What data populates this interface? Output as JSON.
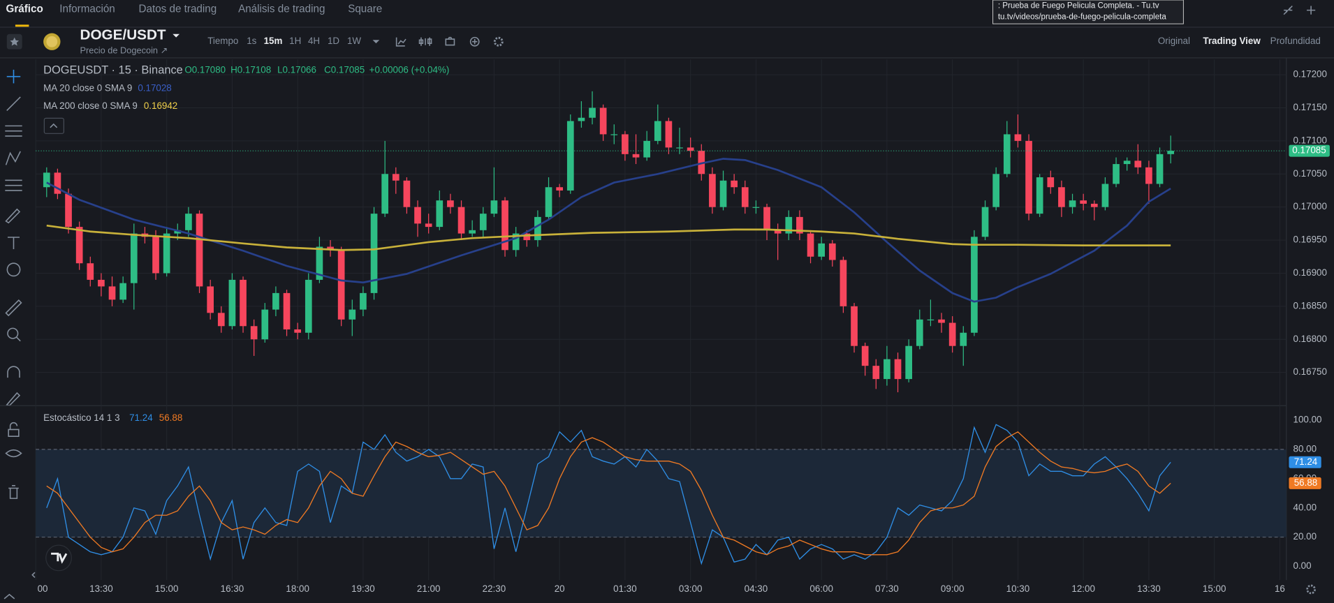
{
  "tabs": [
    "Gráfico",
    "Información",
    "Datos de trading",
    "Análisis de trading",
    "Square"
  ],
  "tooltip": [
    ": Prueba de Fuego Pelicula Completa. - Tu.tv",
    "tu.tv/videos/prueba-de-fuego-pelicula-completa"
  ],
  "header": {
    "symbol": "DOGE/USDT",
    "subtitle": "Precio de Dogecoin ↗",
    "time_label": "Tiempo",
    "timeframes": [
      "1s",
      "15m",
      "1H",
      "4H",
      "1D",
      "1W"
    ],
    "view_modes": [
      "Original",
      "Trading View",
      "Profundidad"
    ]
  },
  "chart_data": [
    {
      "type": "candlestick",
      "title": "DOGEUSDT · 15 · Binance",
      "ohlc_labels": [
        "O0.17080",
        "H0.17108",
        "L0.17066",
        "C0.17085",
        "+0.00006 (+0.04%)"
      ],
      "up_color": "#2ebd85",
      "down_color": "#f6465d",
      "grid": true,
      "xlim": [
        -1,
        113.6
      ],
      "ylim": [
        0.16701,
        0.17223
      ],
      "xticks": [
        {
          "value": -1,
          "label": "00"
        },
        {
          "value": 5,
          "label": "13:30"
        },
        {
          "value": 11,
          "label": "15:00"
        },
        {
          "value": 17,
          "label": "16:30"
        },
        {
          "value": 23,
          "label": "18:00"
        },
        {
          "value": 29,
          "label": "19:30"
        },
        {
          "value": 35,
          "label": "21:00"
        },
        {
          "value": 41,
          "label": "22:30"
        },
        {
          "value": 47,
          "label": "20"
        },
        {
          "value": 53,
          "label": "01:30"
        },
        {
          "value": 59,
          "label": "03:00"
        },
        {
          "value": 65,
          "label": "04:30"
        },
        {
          "value": 71,
          "label": "06:00"
        },
        {
          "value": 77,
          "label": "07:30"
        },
        {
          "value": 83,
          "label": "09:00"
        },
        {
          "value": 89,
          "label": "10:30"
        },
        {
          "value": 95,
          "label": "12:00"
        },
        {
          "value": 101,
          "label": "13:30"
        },
        {
          "value": 107,
          "label": "15:00"
        },
        {
          "value": 113,
          "label": "16"
        }
      ],
      "yticks": [
        {
          "value": 0.172,
          "label": "0.17200"
        },
        {
          "value": 0.1715,
          "label": "0.17150"
        },
        {
          "value": 0.171,
          "label": "0.17100"
        },
        {
          "value": 0.1705,
          "label": "0.17050"
        },
        {
          "value": 0.17,
          "label": "0.17000"
        },
        {
          "value": 0.1695,
          "label": "0.16950"
        },
        {
          "value": 0.169,
          "label": "0.16900"
        },
        {
          "value": 0.1685,
          "label": "0.16850"
        },
        {
          "value": 0.168,
          "label": "0.16800"
        },
        {
          "value": 0.1675,
          "label": "0.16750"
        }
      ],
      "candles": [
        [
          0.1703,
          0.1706,
          0.17015,
          0.17052
        ],
        [
          0.17052,
          0.17058,
          0.17012,
          0.1702
        ],
        [
          0.1702,
          0.17028,
          0.1696,
          0.1697
        ],
        [
          0.1697,
          0.16978,
          0.16905,
          0.16915
        ],
        [
          0.16915,
          0.16925,
          0.1688,
          0.1689
        ],
        [
          0.1689,
          0.169,
          0.16865,
          0.1688
        ],
        [
          0.1688,
          0.16895,
          0.1685,
          0.1686
        ],
        [
          0.1686,
          0.16895,
          0.16855,
          0.16885
        ],
        [
          0.16885,
          0.16975,
          0.16845,
          0.1696
        ],
        [
          0.1696,
          0.1697,
          0.16945,
          0.16955
        ],
        [
          0.16955,
          0.16965,
          0.1689,
          0.169
        ],
        [
          0.169,
          0.1697,
          0.16895,
          0.1696
        ],
        [
          0.1696,
          0.16975,
          0.1695,
          0.16965
        ],
        [
          0.16965,
          0.17,
          0.16955,
          0.1699
        ],
        [
          0.1699,
          0.16995,
          0.1687,
          0.1688
        ],
        [
          0.1688,
          0.1689,
          0.1683,
          0.1684
        ],
        [
          0.1684,
          0.1685,
          0.1681,
          0.1682
        ],
        [
          0.1682,
          0.169,
          0.16815,
          0.1689
        ],
        [
          0.1689,
          0.16895,
          0.1681,
          0.1682
        ],
        [
          0.1682,
          0.1683,
          0.16775,
          0.168
        ],
        [
          0.168,
          0.16855,
          0.16795,
          0.16845
        ],
        [
          0.16845,
          0.1688,
          0.16835,
          0.1687
        ],
        [
          0.1687,
          0.16875,
          0.16805,
          0.16815
        ],
        [
          0.16815,
          0.16825,
          0.168,
          0.1681
        ],
        [
          0.1681,
          0.169,
          0.168,
          0.1689
        ],
        [
          0.1689,
          0.16955,
          0.16885,
          0.1694
        ],
        [
          0.1694,
          0.1695,
          0.16925,
          0.16935
        ],
        [
          0.16935,
          0.1694,
          0.1682,
          0.1683
        ],
        [
          0.1683,
          0.1686,
          0.16805,
          0.16845
        ],
        [
          0.16845,
          0.1688,
          0.16835,
          0.1687
        ],
        [
          0.1687,
          0.17,
          0.1686,
          0.1699
        ],
        [
          0.1699,
          0.171,
          0.16985,
          0.1705
        ],
        [
          0.1705,
          0.1706,
          0.1702,
          0.1704
        ],
        [
          0.1704,
          0.17045,
          0.1699,
          0.17
        ],
        [
          0.17,
          0.1701,
          0.16955,
          0.16975
        ],
        [
          0.16975,
          0.1699,
          0.1696,
          0.1697
        ],
        [
          0.1697,
          0.17025,
          0.16965,
          0.1701
        ],
        [
          0.1701,
          0.1702,
          0.1699,
          0.17
        ],
        [
          0.17,
          0.1701,
          0.1695,
          0.1696
        ],
        [
          0.1696,
          0.1698,
          0.16955,
          0.16965
        ],
        [
          0.16965,
          0.17,
          0.16955,
          0.1699
        ],
        [
          0.1699,
          0.1706,
          0.16985,
          0.1701
        ],
        [
          0.1701,
          0.17015,
          0.16925,
          0.16935
        ],
        [
          0.16935,
          0.1697,
          0.16925,
          0.1696
        ],
        [
          0.1696,
          0.16965,
          0.1694,
          0.1695
        ],
        [
          0.1695,
          0.16995,
          0.1694,
          0.16985
        ],
        [
          0.16985,
          0.17045,
          0.1698,
          0.1703
        ],
        [
          0.1703,
          0.17035,
          0.17015,
          0.17025
        ],
        [
          0.17025,
          0.1714,
          0.1702,
          0.1713
        ],
        [
          0.1713,
          0.1716,
          0.1712,
          0.17135
        ],
        [
          0.17135,
          0.17175,
          0.17125,
          0.1715
        ],
        [
          0.1715,
          0.17155,
          0.171,
          0.1711
        ],
        [
          0.1711,
          0.17125,
          0.17095,
          0.1711
        ],
        [
          0.1711,
          0.17115,
          0.1707,
          0.1708
        ],
        [
          0.1708,
          0.1711,
          0.17065,
          0.17075
        ],
        [
          0.17075,
          0.17115,
          0.1707,
          0.171
        ],
        [
          0.171,
          0.17155,
          0.17095,
          0.1713
        ],
        [
          0.1713,
          0.17135,
          0.1708,
          0.1709
        ],
        [
          0.1709,
          0.1712,
          0.1708,
          0.1709
        ],
        [
          0.1709,
          0.17105,
          0.17075,
          0.17085
        ],
        [
          0.17085,
          0.17095,
          0.1704,
          0.1705
        ],
        [
          0.1705,
          0.1706,
          0.1699,
          0.17
        ],
        [
          0.17,
          0.17055,
          0.16995,
          0.1704
        ],
        [
          0.1704,
          0.1705,
          0.1702,
          0.1703
        ],
        [
          0.1703,
          0.1704,
          0.1699,
          0.17
        ],
        [
          0.17,
          0.1701,
          0.1699,
          0.17
        ],
        [
          0.17,
          0.17005,
          0.1695,
          0.16965
        ],
        [
          0.16965,
          0.16975,
          0.1692,
          0.1696
        ],
        [
          0.1696,
          0.16995,
          0.1695,
          0.16985
        ],
        [
          0.16985,
          0.16995,
          0.1695,
          0.1696
        ],
        [
          0.1696,
          0.16965,
          0.16915,
          0.16925
        ],
        [
          0.16925,
          0.16955,
          0.1692,
          0.16945
        ],
        [
          0.16945,
          0.1695,
          0.1691,
          0.1692
        ],
        [
          0.1692,
          0.16925,
          0.1684,
          0.1685
        ],
        [
          0.1685,
          0.16855,
          0.1678,
          0.1679
        ],
        [
          0.1679,
          0.16795,
          0.16745,
          0.1676
        ],
        [
          0.1676,
          0.1677,
          0.16725,
          0.1674
        ],
        [
          0.1674,
          0.1679,
          0.1673,
          0.1677
        ],
        [
          0.1677,
          0.1678,
          0.1672,
          0.1674
        ],
        [
          0.1674,
          0.168,
          0.16735,
          0.1679
        ],
        [
          0.1679,
          0.16845,
          0.16785,
          0.1683
        ],
        [
          0.1683,
          0.1686,
          0.1682,
          0.1683
        ],
        [
          0.1683,
          0.1684,
          0.1681,
          0.16825
        ],
        [
          0.16825,
          0.16835,
          0.1678,
          0.1679
        ],
        [
          0.1679,
          0.1682,
          0.1676,
          0.1681
        ],
        [
          0.1681,
          0.16965,
          0.16805,
          0.16955
        ],
        [
          0.16955,
          0.1701,
          0.1695,
          0.17
        ],
        [
          0.17,
          0.1706,
          0.16995,
          0.1705
        ],
        [
          0.1705,
          0.1713,
          0.17045,
          0.1711
        ],
        [
          0.1711,
          0.1714,
          0.1709,
          0.171
        ],
        [
          0.171,
          0.1711,
          0.1698,
          0.1699
        ],
        [
          0.1699,
          0.1705,
          0.16985,
          0.17045
        ],
        [
          0.17045,
          0.17055,
          0.1702,
          0.1703
        ],
        [
          0.1703,
          0.1704,
          0.16985,
          0.17
        ],
        [
          0.17,
          0.1702,
          0.1699,
          0.1701
        ],
        [
          0.1701,
          0.1702,
          0.16995,
          0.17005
        ],
        [
          0.17005,
          0.1701,
          0.1698,
          0.17
        ],
        [
          0.17,
          0.17045,
          0.16995,
          0.17035
        ],
        [
          0.17035,
          0.17075,
          0.1703,
          0.17065
        ],
        [
          0.17065,
          0.17075,
          0.17055,
          0.1707
        ],
        [
          0.1707,
          0.17095,
          0.1705,
          0.1706
        ],
        [
          0.1706,
          0.1707,
          0.17005,
          0.17035
        ],
        [
          0.17035,
          0.1709,
          0.1703,
          0.1708
        ],
        [
          0.1708,
          0.17108,
          0.17066,
          0.17085
        ]
      ],
      "overlays": [
        {
          "name": "MA 20 close 0 SMA 9",
          "color": "#27408b",
          "x": [
            0,
            3,
            8,
            13,
            18,
            22,
            27,
            29,
            33,
            38,
            43,
            46,
            49,
            52,
            56,
            60,
            62,
            64,
            67,
            71,
            74,
            77,
            80,
            83,
            85,
            87,
            89,
            92,
            96,
            99,
            101,
            103
          ],
          "values": [
            0.17037,
            0.17011,
            0.16981,
            0.1696,
            0.16934,
            0.16911,
            0.16889,
            0.16886,
            0.16899,
            0.16927,
            0.16953,
            0.16981,
            0.17015,
            0.17037,
            0.1705,
            0.17066,
            0.17073,
            0.17071,
            0.17056,
            0.1703,
            0.16992,
            0.16947,
            0.16904,
            0.1687,
            0.16857,
            0.16863,
            0.16879,
            0.16899,
            0.16934,
            0.16972,
            0.17008,
            0.17028
          ]
        },
        {
          "name": "MA 200 close 0 SMA 9",
          "color": "#c8b13a",
          "x": [
            0,
            4,
            8,
            13,
            18,
            22,
            27,
            30,
            35,
            39,
            44,
            50,
            57,
            63,
            66,
            71,
            74,
            78,
            83,
            85,
            89,
            95,
            103
          ],
          "values": [
            0.16972,
            0.16963,
            0.16958,
            0.16953,
            0.16945,
            0.16939,
            0.16935,
            0.16936,
            0.16947,
            0.16953,
            0.16957,
            0.16961,
            0.16963,
            0.16966,
            0.16966,
            0.16963,
            0.1696,
            0.16952,
            0.16944,
            0.16943,
            0.16943,
            0.16942,
            0.16942
          ]
        }
      ]
    },
    {
      "type": "line",
      "title": "Estocástico 14 1 3",
      "xlim": [
        -1,
        113.6
      ],
      "ylim": [
        -9.3,
        109.3
      ],
      "band": [
        20,
        80
      ],
      "band_color": "#1c2838",
      "yticks": [
        {
          "value": 100,
          "label": "100.00"
        },
        {
          "value": 80,
          "label": "80.00"
        },
        {
          "value": 60,
          "label": "60.00"
        },
        {
          "value": 40,
          "label": "40.00"
        },
        {
          "value": 20,
          "label": "20.00"
        },
        {
          "value": 0,
          "label": "0.00"
        }
      ],
      "series": [
        {
          "color": "#2f8ee5",
          "values": [
            40,
            60,
            20,
            15,
            10,
            8,
            10,
            20,
            40,
            38,
            22,
            45,
            55,
            68,
            35,
            5,
            30,
            45,
            5,
            30,
            40,
            30,
            28,
            65,
            70,
            65,
            30,
            55,
            50,
            85,
            80,
            90,
            78,
            72,
            75,
            80,
            75,
            60,
            60,
            70,
            68,
            12,
            40,
            10,
            40,
            70,
            75,
            92,
            85,
            93,
            75,
            72,
            70,
            75,
            68,
            80,
            72,
            60,
            58,
            30,
            2,
            25,
            20,
            3,
            5,
            15,
            8,
            18,
            20,
            5,
            12,
            15,
            12,
            5,
            8,
            5,
            10,
            20,
            40,
            35,
            42,
            40,
            38,
            45,
            60,
            95,
            78,
            97,
            93,
            85,
            62,
            70,
            65,
            65,
            62,
            62,
            70,
            75,
            68,
            60,
            50,
            38,
            62,
            71.24
          ]
        },
        {
          "color": "#f07a23",
          "values": [
            55,
            50,
            40,
            30,
            20,
            13,
            10,
            12,
            20,
            30,
            35,
            35,
            38,
            48,
            55,
            45,
            30,
            25,
            27,
            25,
            22,
            28,
            32,
            30,
            40,
            55,
            65,
            60,
            50,
            48,
            62,
            75,
            85,
            82,
            78,
            75,
            76,
            78,
            73,
            68,
            63,
            65,
            55,
            40,
            25,
            28,
            40,
            60,
            75,
            85,
            88,
            85,
            80,
            75,
            73,
            72,
            72,
            72,
            70,
            65,
            52,
            35,
            20,
            18,
            14,
            10,
            8,
            12,
            14,
            18,
            15,
            12,
            10,
            10,
            10,
            8,
            8,
            8,
            10,
            18,
            30,
            38,
            40,
            40,
            42,
            48,
            68,
            82,
            88,
            92,
            85,
            78,
            72,
            68,
            67,
            65,
            64,
            65,
            68,
            70,
            65,
            55,
            50,
            56.88
          ]
        }
      ]
    }
  ]
}
